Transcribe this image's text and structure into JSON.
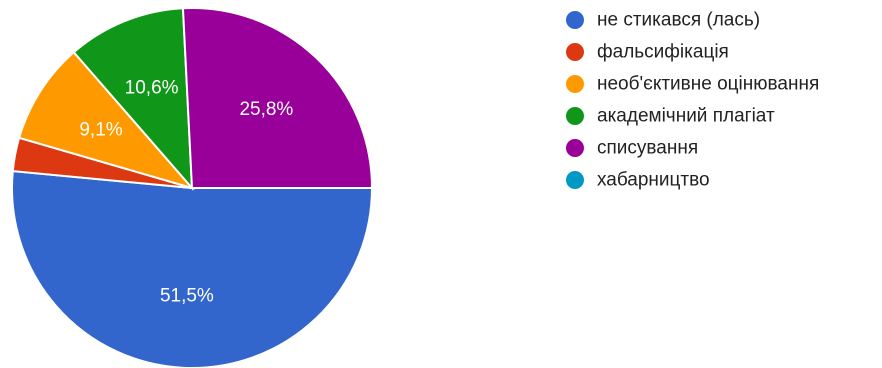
{
  "chart_data": {
    "type": "pie",
    "slices": [
      {
        "name": "не стикався (лась)",
        "value": 51.5,
        "label": "51,5%",
        "color": "#3366cc"
      },
      {
        "name": "фальсифікація",
        "value": 3.0,
        "label": "",
        "color": "#dc3912"
      },
      {
        "name": "необ'єктивне оцінювання",
        "value": 9.1,
        "label": "9,1%",
        "color": "#ff9900"
      },
      {
        "name": "академічний плагіат",
        "value": 10.6,
        "label": "10,6%",
        "color": "#109618"
      },
      {
        "name": "списування",
        "value": 25.8,
        "label": "25,8%",
        "color": "#990099"
      },
      {
        "name": "хабарництво",
        "value": 0,
        "label": "",
        "color": "#0099c6"
      }
    ],
    "legend_position": "right"
  }
}
